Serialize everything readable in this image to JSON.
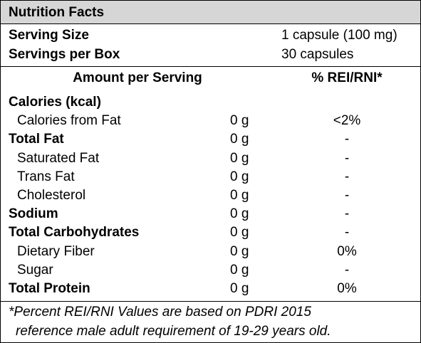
{
  "title": "Nutrition Facts",
  "serving": [
    {
      "label": "Serving Size",
      "value": "1 capsule (100 mg)"
    },
    {
      "label": "Servings per Box",
      "value": "30 capsules"
    }
  ],
  "table": {
    "header": [
      "Amount per Serving",
      "% REI/RNI*"
    ],
    "rows": [
      {
        "label": "Calories (kcal)"
      },
      {
        "label": "Calories from Fat",
        "amount": "0 g",
        "percent": "<2%"
      },
      {
        "label": "Total Fat",
        "amount": "0 g",
        "percent": "-"
      },
      {
        "label": "Saturated Fat",
        "amount": "0 g",
        "percent": "-"
      },
      {
        "label": "Trans Fat",
        "amount": "0 g",
        "percent": "-"
      },
      {
        "label": "Cholesterol",
        "amount": "0 g",
        "percent": "-"
      },
      {
        "label": "Sodium",
        "amount": "0 g",
        "percent": "-"
      },
      {
        "label": "Total Carbohydrates",
        "amount": "0 g",
        "percent": "-"
      },
      {
        "label": "Dietary Fiber",
        "amount": "0 g",
        "percent": "0%"
      },
      {
        "label": "Sugar",
        "amount": "0 g",
        "percent": "-"
      },
      {
        "label": "Total Protein",
        "amount": "0 g",
        "percent": "0%"
      }
    ]
  },
  "footnote": [
    "*Percent REI/RNI Values are based on PDRI 2015",
    "reference male adult requirement of 19-29 years old."
  ]
}
